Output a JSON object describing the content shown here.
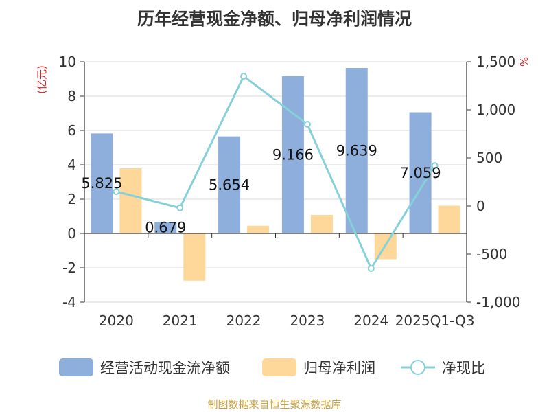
{
  "chart_data": {
    "type": "bar",
    "title": "历年经营现金净额、归母净利润情况",
    "source": "制图数据来自恒生聚源数据库",
    "categories": [
      "2020",
      "2021",
      "2022",
      "2023",
      "2024",
      "2025Q1-Q3"
    ],
    "y_left": {
      "unit": "(亿元)",
      "ylim": [
        -4,
        10
      ],
      "ticks": [
        -4,
        -2,
        0,
        2,
        4,
        6,
        8,
        10
      ]
    },
    "y_right": {
      "unit": "%",
      "ylim": [
        -1000,
        1500
      ],
      "ticks": [
        -1000,
        -500,
        0,
        500,
        1000,
        1500
      ],
      "tick_labels": [
        "-1,000",
        "-500",
        "0",
        "500",
        "1,000",
        "1,500"
      ]
    },
    "series": [
      {
        "name": "经营活动现金流净额",
        "type": "bar",
        "axis": "left",
        "color": "#8eaedb",
        "values": [
          5.825,
          0.679,
          5.654,
          9.166,
          9.639,
          7.059
        ],
        "labels": [
          "5.825",
          "0.679",
          "5.654",
          "9.166",
          "9.639",
          "7.059"
        ]
      },
      {
        "name": "归母净利润",
        "type": "bar",
        "axis": "left",
        "color": "#fdd89a",
        "values": [
          3.8,
          -2.75,
          0.45,
          1.08,
          -1.5,
          1.62
        ]
      },
      {
        "name": "净现比",
        "type": "line",
        "axis": "right",
        "color": "#86d0d8",
        "values": [
          150,
          -20,
          1350,
          850,
          -650,
          420
        ]
      }
    ],
    "grid": true,
    "legend_position": "bottom"
  }
}
